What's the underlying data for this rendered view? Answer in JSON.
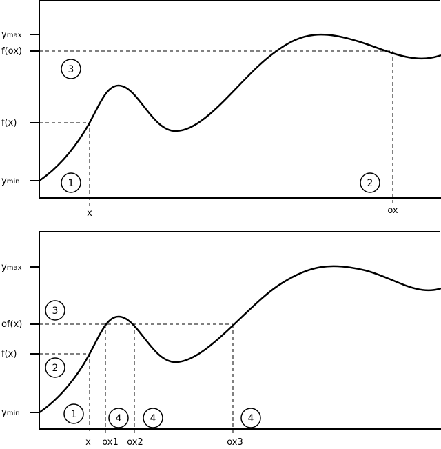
{
  "panels": [
    {
      "y_labels": [
        {
          "main": "y",
          "sub": "max"
        },
        {
          "main": "f(ox)"
        },
        {
          "main": "f(x)"
        },
        {
          "main": "y",
          "sub": "min"
        }
      ],
      "x_labels": [
        "x",
        "ox"
      ],
      "markers": [
        "3",
        "1",
        "2"
      ]
    },
    {
      "y_labels": [
        {
          "main": "y",
          "sub": "max"
        },
        {
          "main": "of(x)"
        },
        {
          "main": "f(x)"
        },
        {
          "main": "y",
          "sub": "min"
        }
      ],
      "x_labels": [
        "x",
        "ox1",
        "ox2",
        "ox3"
      ],
      "markers": [
        "3",
        "2",
        "1",
        "4",
        "4",
        "4"
      ]
    }
  ]
}
